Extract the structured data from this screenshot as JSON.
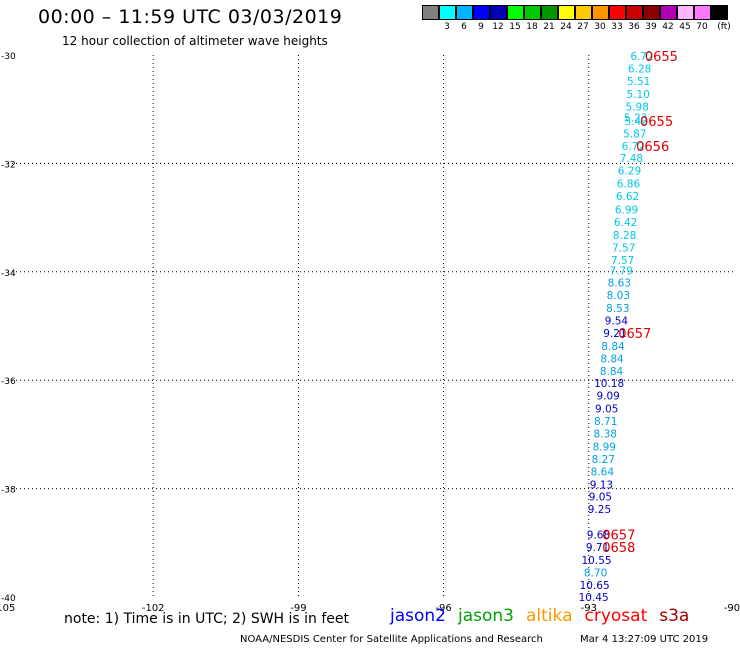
{
  "header": {
    "title": "00:00 – 11:59 UTC 03/03/2019",
    "subtitle": "12 hour collection of altimeter wave heights"
  },
  "color_scale": {
    "swatches": [
      "#808080",
      "#00ffff",
      "#00b4ff",
      "#0000ff",
      "#0000b4",
      "#00ff00",
      "#00c800",
      "#009600",
      "#ffff00",
      "#ffc800",
      "#ff9600",
      "#ff0000",
      "#c80000",
      "#8c0000",
      "#b400b4",
      "#ffb4ff",
      "#ff78ff",
      "#000000"
    ],
    "labels": [
      "3",
      "6",
      "9",
      "12",
      "15",
      "18",
      "21",
      "24",
      "27",
      "30",
      "33",
      "36",
      "39",
      "42",
      "45",
      "70"
    ],
    "unit": "(ft)"
  },
  "chart_data": {
    "type": "map",
    "x_ticks": [
      "-105",
      "-102",
      "-99",
      "-96",
      "-93",
      "-90"
    ],
    "y_ticks": [
      "-30",
      "-32",
      "-34",
      "-36",
      "-38",
      "-40"
    ],
    "xlim": [
      -105,
      -90
    ],
    "ylim": [
      -40,
      -30
    ],
    "grid": true,
    "wave_heights": [
      {
        "v": "6.72",
        "lon": -91.9,
        "lat": -30.02,
        "color": "#00c8e6"
      },
      {
        "v": "6.28",
        "lon": -91.95,
        "lat": -30.25,
        "color": "#00c8e6"
      },
      {
        "v": "5.51",
        "lon": -91.97,
        "lat": -30.48,
        "color": "#00c8e6"
      },
      {
        "v": "5.10",
        "lon": -91.98,
        "lat": -30.72,
        "color": "#00c8e6"
      },
      {
        "v": "5.98",
        "lon": -92.0,
        "lat": -30.95,
        "color": "#00c8e6"
      },
      {
        "v": "5.23",
        "lon": -92.03,
        "lat": -31.15,
        "color": "#00c8e6"
      },
      {
        "v": "5.42",
        "lon": -92.02,
        "lat": -31.22,
        "color": "#00c8e6"
      },
      {
        "v": "5.87",
        "lon": -92.05,
        "lat": -31.45,
        "color": "#00c8e6"
      },
      {
        "v": "6.72",
        "lon": -92.08,
        "lat": -31.68,
        "color": "#00c8e6"
      },
      {
        "v": "7.48",
        "lon": -92.12,
        "lat": -31.9,
        "color": "#00c8e6"
      },
      {
        "v": "6.29",
        "lon": -92.16,
        "lat": -32.13,
        "color": "#00c8e6"
      },
      {
        "v": "6.86",
        "lon": -92.18,
        "lat": -32.37,
        "color": "#00c8e6"
      },
      {
        "v": "6.62",
        "lon": -92.2,
        "lat": -32.6,
        "color": "#00c8e6"
      },
      {
        "v": "6.99",
        "lon": -92.22,
        "lat": -32.85,
        "color": "#00c8e6"
      },
      {
        "v": "6.42",
        "lon": -92.24,
        "lat": -33.08,
        "color": "#00c8e6"
      },
      {
        "v": "8.28",
        "lon": -92.26,
        "lat": -33.32,
        "color": "#00c8e6"
      },
      {
        "v": "7.57",
        "lon": -92.28,
        "lat": -33.55,
        "color": "#00c8e6"
      },
      {
        "v": "7.57",
        "lon": -92.3,
        "lat": -33.78,
        "color": "#00c8e6"
      },
      {
        "v": "7.79",
        "lon": -92.33,
        "lat": -33.98,
        "color": "#00c8e6"
      },
      {
        "v": "8.63",
        "lon": -92.37,
        "lat": -34.2,
        "color": "#00a0e6"
      },
      {
        "v": "8.03",
        "lon": -92.39,
        "lat": -34.43,
        "color": "#00a0e6"
      },
      {
        "v": "8.53",
        "lon": -92.4,
        "lat": -34.67,
        "color": "#00a0e6"
      },
      {
        "v": "9.54",
        "lon": -92.43,
        "lat": -34.9,
        "color": "#0000c8"
      },
      {
        "v": "9.21",
        "lon": -92.46,
        "lat": -35.13,
        "color": "#0000c8"
      },
      {
        "v": "8.84",
        "lon": -92.5,
        "lat": -35.37,
        "color": "#00a0e6"
      },
      {
        "v": "8.84",
        "lon": -92.52,
        "lat": -35.6,
        "color": "#00a0e6"
      },
      {
        "v": "8.84",
        "lon": -92.53,
        "lat": -35.83,
        "color": "#00a0e6"
      },
      {
        "v": "10.18",
        "lon": -92.58,
        "lat": -36.05,
        "color": "#0000c8"
      },
      {
        "v": "9.09",
        "lon": -92.6,
        "lat": -36.28,
        "color": "#0000c8"
      },
      {
        "v": "9.05",
        "lon": -92.63,
        "lat": -36.52,
        "color": "#0000c8"
      },
      {
        "v": "8.71",
        "lon": -92.65,
        "lat": -36.75,
        "color": "#00a0e6"
      },
      {
        "v": "8.38",
        "lon": -92.66,
        "lat": -36.98,
        "color": "#00a0e6"
      },
      {
        "v": "8.99",
        "lon": -92.68,
        "lat": -37.22,
        "color": "#00a0e6"
      },
      {
        "v": "8.27",
        "lon": -92.7,
        "lat": -37.45,
        "color": "#00a0e6"
      },
      {
        "v": "8.64",
        "lon": -92.72,
        "lat": -37.68,
        "color": "#00a0e6"
      },
      {
        "v": "9.13",
        "lon": -92.74,
        "lat": -37.92,
        "color": "#0000c8"
      },
      {
        "v": "9.05",
        "lon": -92.76,
        "lat": -38.15,
        "color": "#0000c8"
      },
      {
        "v": "9.25",
        "lon": -92.78,
        "lat": -38.38,
        "color": "#0000c8"
      },
      {
        "v": "9.68",
        "lon": -92.8,
        "lat": -38.85,
        "color": "#0000c8"
      },
      {
        "v": "9.71",
        "lon": -92.82,
        "lat": -39.08,
        "color": "#0000c8"
      },
      {
        "v": "10.55",
        "lon": -92.84,
        "lat": -39.32,
        "color": "#0000c8"
      },
      {
        "v": "8.70",
        "lon": -92.86,
        "lat": -39.55,
        "color": "#00a0e6"
      },
      {
        "v": "10.65",
        "lon": -92.88,
        "lat": -39.78,
        "color": "#0000c8"
      },
      {
        "v": "10.45",
        "lon": -92.9,
        "lat": -40.0,
        "color": "#0000c8"
      }
    ],
    "time_labels": [
      {
        "v": "0655",
        "lon": -91.5,
        "lat": -30.02
      },
      {
        "v": "0655",
        "lon": -91.6,
        "lat": -31.22
      },
      {
        "v": "0656",
        "lon": -91.68,
        "lat": -31.68
      },
      {
        "v": "0657",
        "lon": -92.05,
        "lat": -35.13
      },
      {
        "v": "0657",
        "lon": -92.38,
        "lat": -38.85
      },
      {
        "v": "0658",
        "lon": -92.38,
        "lat": -39.08
      }
    ]
  },
  "footer": {
    "note": "note: 1) Time is in UTC; 2) SWH is in feet",
    "satellites": [
      {
        "name": "jason2",
        "color": "#0000ff"
      },
      {
        "name": "jason3",
        "color": "#00a000"
      },
      {
        "name": "altika",
        "color": "#ff9600"
      },
      {
        "name": "cryosat",
        "color": "#ff0000"
      },
      {
        "name": "s3a",
        "color": "#a00000"
      }
    ],
    "credit": "NOAA/NESDIS Center for Satellite Applications and Research",
    "timestamp": "Mar  4 13:27:09 UTC 2019"
  }
}
